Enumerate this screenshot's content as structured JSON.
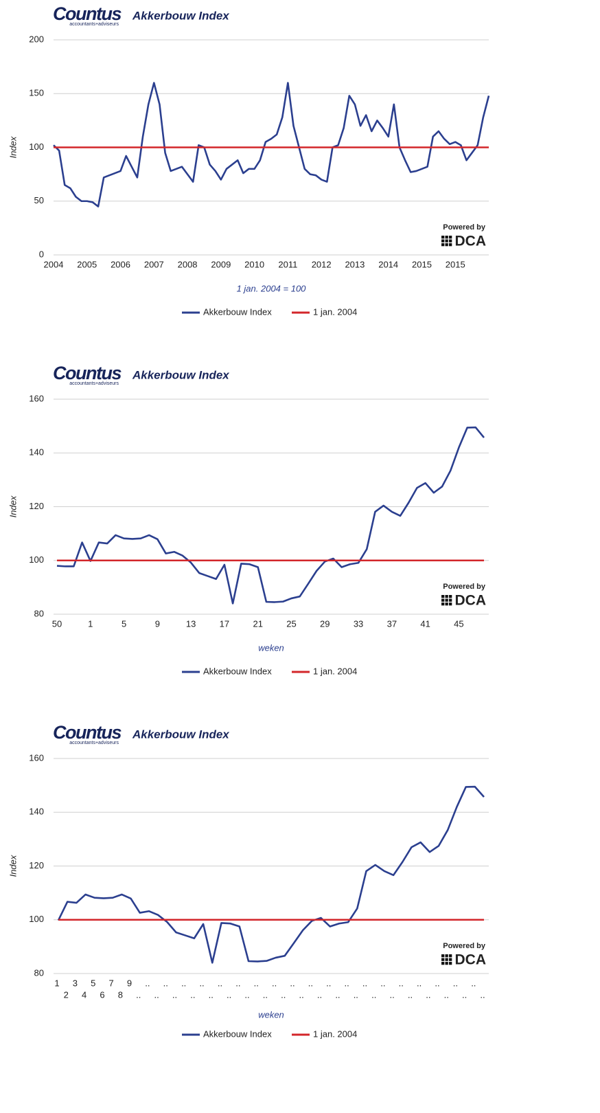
{
  "chart_data": [
    {
      "type": "line",
      "logo": "Countus",
      "logo_tagline": "accountants+adviseurs",
      "title": "Akkerbouw Index",
      "credit": "Powered by",
      "credit_brand": "DCA",
      "ylabel": "Index",
      "xlabel": "1 jan. 2004 = 100",
      "categories": [
        "2004",
        null,
        null,
        null,
        null,
        null,
        "2005",
        null,
        null,
        null,
        null,
        null,
        "2006",
        null,
        null,
        null,
        null,
        null,
        "2007",
        null,
        null,
        null,
        null,
        null,
        "2008",
        null,
        null,
        null,
        null,
        null,
        "2009",
        null,
        null,
        null,
        null,
        null,
        "2010",
        null,
        null,
        null,
        null,
        null,
        "2011",
        null,
        null,
        null,
        null,
        null,
        "2012",
        null,
        null,
        null,
        null,
        null,
        "2013",
        null,
        null,
        null,
        null,
        null,
        "2014",
        null,
        null,
        null,
        null,
        null,
        "2015",
        null,
        null,
        null,
        null,
        null,
        "2015",
        null,
        null,
        null,
        null,
        null,
        null
      ],
      "series": [
        {
          "name": "Akkerbouw Index",
          "color": "#2b3f8f",
          "values": [
            102,
            97,
            65,
            62,
            54,
            50,
            50,
            49,
            45,
            72,
            74,
            76,
            78,
            92,
            82,
            72,
            110,
            140,
            160,
            140,
            95,
            78,
            80,
            82,
            75,
            68,
            102,
            100,
            84,
            78,
            70,
            80,
            84,
            88,
            76,
            80,
            80,
            88,
            105,
            108,
            112,
            128,
            160,
            120,
            100,
            80,
            75,
            74,
            70,
            68,
            100,
            102,
            118,
            148,
            140,
            120,
            130,
            115,
            125,
            118,
            110,
            140,
            100,
            88,
            77,
            78,
            80,
            82,
            110,
            115,
            108,
            103,
            105,
            102,
            88,
            95,
            102,
            128,
            148
          ]
        },
        {
          "name": "1 jan. 2004",
          "color": "#d3262a",
          "values": [
            100,
            100,
            100,
            100,
            100,
            100,
            100,
            100,
            100,
            100,
            100,
            100,
            100,
            100,
            100,
            100,
            100,
            100,
            100,
            100,
            100,
            100,
            100,
            100,
            100,
            100,
            100,
            100,
            100,
            100,
            100,
            100,
            100,
            100,
            100,
            100,
            100,
            100,
            100,
            100,
            100,
            100,
            100,
            100,
            100,
            100,
            100,
            100,
            100,
            100,
            100,
            100,
            100,
            100,
            100,
            100,
            100,
            100,
            100,
            100,
            100,
            100,
            100,
            100,
            100,
            100,
            100,
            100,
            100,
            100,
            100,
            100,
            100,
            100,
            100,
            100,
            100,
            100,
            100
          ]
        }
      ],
      "ylim": [
        0,
        200
      ],
      "yticks": [
        0,
        50,
        100,
        150,
        200
      ],
      "grid": true
    },
    {
      "type": "line",
      "logo": "Countus",
      "logo_tagline": "accountants+adviseurs",
      "title": "Akkerbouw Index",
      "credit": "Powered by",
      "credit_brand": "DCA",
      "ylabel": "Index",
      "xlabel": "weken",
      "categories": [
        "50",
        null,
        null,
        null,
        "1",
        null,
        null,
        null,
        "5",
        null,
        null,
        null,
        "9",
        null,
        null,
        null,
        "13",
        null,
        null,
        null,
        "17",
        null,
        null,
        null,
        "21",
        null,
        null,
        null,
        "25",
        null,
        null,
        null,
        "29",
        null,
        null,
        null,
        "33",
        null,
        null,
        null,
        "37",
        null,
        null,
        null,
        "41",
        null,
        null,
        null,
        "45",
        null,
        null,
        null
      ],
      "series": [
        {
          "name": "Akkerbouw Index",
          "color": "#2b3f8f",
          "values": [
            98,
            97.8,
            97.8,
            106.7,
            99.8,
            106.7,
            106.3,
            109.4,
            108.2,
            108,
            108.2,
            109.4,
            107.9,
            102.6,
            103.2,
            101.8,
            99.2,
            95.3,
            94.2,
            93.1,
            98.4,
            84,
            98.8,
            98.6,
            97.5,
            84.6,
            84.5,
            84.7,
            85.9,
            86.6,
            91.3,
            96.1,
            99.6,
            100.7,
            97.5,
            98.6,
            99.1,
            104.2,
            118.1,
            120.4,
            118.1,
            116.6,
            121.5,
            127,
            128.8,
            125.2,
            127.5,
            133.4,
            142,
            149.4,
            149.5,
            145.7
          ]
        },
        {
          "name": "1 jan. 2004",
          "color": "#d3262a",
          "values": [
            100,
            100,
            100,
            100,
            100,
            100,
            100,
            100,
            100,
            100,
            100,
            100,
            100,
            100,
            100,
            100,
            100,
            100,
            100,
            100,
            100,
            100,
            100,
            100,
            100,
            100,
            100,
            100,
            100,
            100,
            100,
            100,
            100,
            100,
            100,
            100,
            100,
            100,
            100,
            100,
            100,
            100,
            100,
            100,
            100,
            100,
            100,
            100,
            100,
            100,
            100,
            100
          ]
        }
      ],
      "ylim": [
        80,
        160
      ],
      "yticks": [
        80,
        100,
        120,
        140,
        160
      ],
      "grid": true
    },
    {
      "type": "line",
      "logo": "Countus",
      "logo_tagline": "accountants+adviseurs",
      "title": "Akkerbouw Index",
      "credit": "Powered by",
      "credit_brand": "DCA",
      "ylabel": "Index",
      "xlabel": "weken",
      "categories": [
        "1",
        "2",
        "3",
        "4",
        "5",
        "6",
        "7",
        "8",
        "9",
        "..",
        "..",
        "..",
        "..",
        "..",
        "..",
        "..",
        "..",
        "..",
        "..",
        "..",
        "..",
        "..",
        "..",
        "..",
        "..",
        "..",
        "..",
        "..",
        "..",
        "..",
        "..",
        "..",
        "..",
        "..",
        "..",
        "..",
        "..",
        "..",
        "..",
        "..",
        "..",
        "..",
        "..",
        "..",
        "..",
        "..",
        "..",
        ".."
      ],
      "series": [
        {
          "name": "Akkerbouw Index",
          "color": "#2b3f8f",
          "values": [
            99.8,
            106.7,
            106.3,
            109.4,
            108.2,
            108,
            108.2,
            109.4,
            107.9,
            102.6,
            103.2,
            101.8,
            99.2,
            95.3,
            94.2,
            93.1,
            98.4,
            84,
            98.8,
            98.6,
            97.5,
            84.6,
            84.5,
            84.7,
            85.9,
            86.6,
            91.3,
            96.1,
            99.6,
            100.7,
            97.5,
            98.6,
            99.1,
            104.2,
            118.1,
            120.4,
            118.1,
            116.6,
            121.5,
            127,
            128.8,
            125.2,
            127.5,
            133.4,
            142,
            149.4,
            149.5,
            145.7
          ]
        },
        {
          "name": "1 jan. 2004",
          "color": "#d3262a",
          "values": [
            100,
            100,
            100,
            100,
            100,
            100,
            100,
            100,
            100,
            100,
            100,
            100,
            100,
            100,
            100,
            100,
            100,
            100,
            100,
            100,
            100,
            100,
            100,
            100,
            100,
            100,
            100,
            100,
            100,
            100,
            100,
            100,
            100,
            100,
            100,
            100,
            100,
            100,
            100,
            100,
            100,
            100,
            100,
            100,
            100,
            100,
            100,
            100
          ]
        }
      ],
      "ylim": [
        80,
        160
      ],
      "yticks": [
        80,
        100,
        120,
        140,
        160
      ],
      "grid": true
    }
  ]
}
